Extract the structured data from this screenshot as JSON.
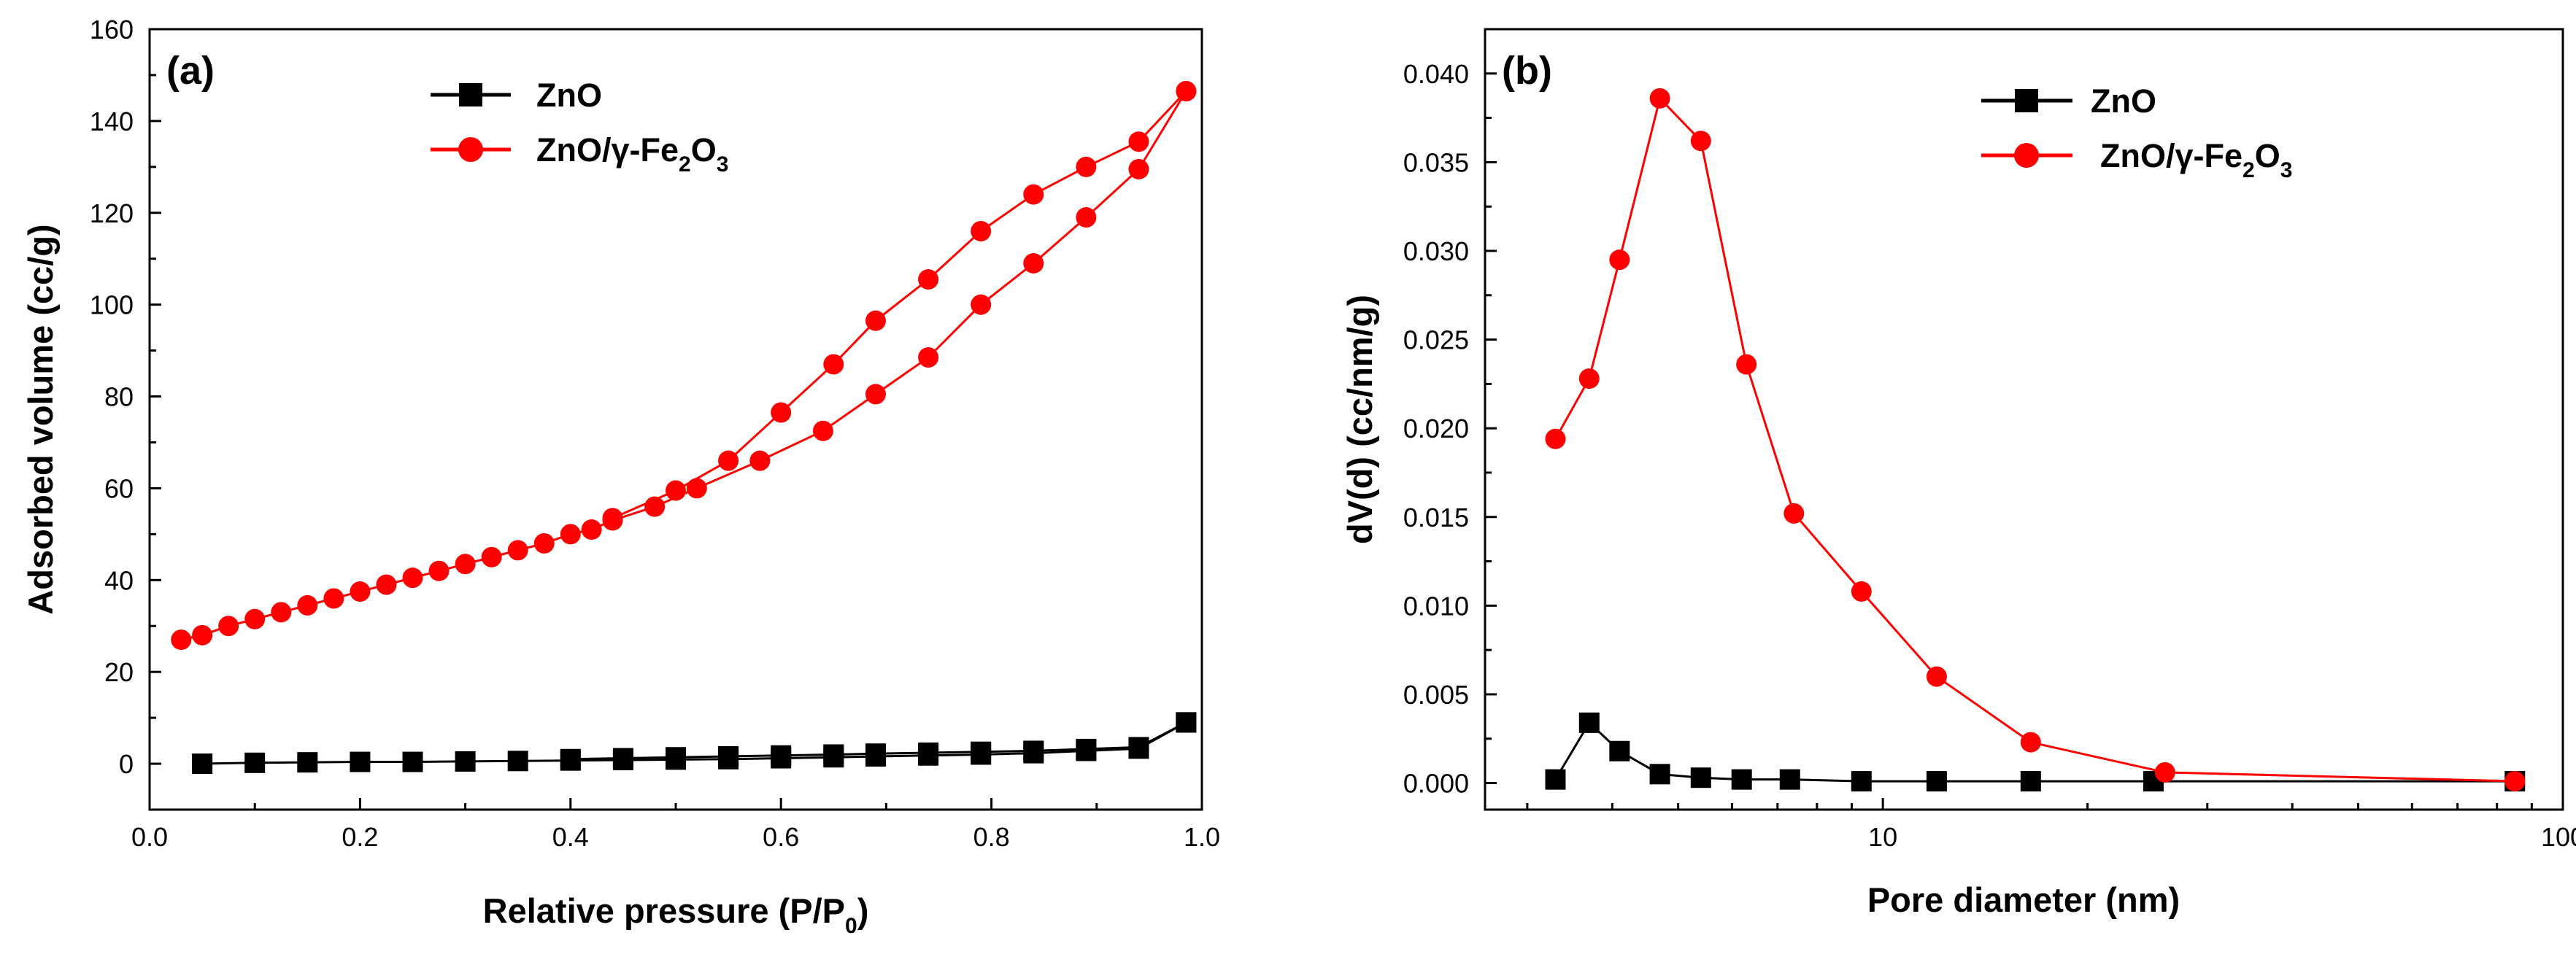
{
  "chart_data": [
    {
      "type": "line",
      "panel_label": "(a)",
      "xlabel_main": "Relative pressure (P/P",
      "xlabel_sub": "0",
      "xlabel_end": ")",
      "ylabel": "Adsorbed volume (cc/g)",
      "xlim": [
        0.0,
        1.0
      ],
      "ylim": [
        -10,
        160
      ],
      "x_ticks": [
        "0.0",
        "0.2",
        "0.4",
        "0.6",
        "0.8",
        "1.0"
      ],
      "y_ticks": [
        "0",
        "20",
        "40",
        "60",
        "80",
        "100",
        "120",
        "140",
        "160"
      ],
      "legend_position": "top-left",
      "series": [
        {
          "name": "ZnO",
          "legend_main": "ZnO",
          "color": "#000000",
          "marker": "square",
          "segments": [
            {
              "x": [
                0.05,
                0.1,
                0.15,
                0.2,
                0.25,
                0.3,
                0.35,
                0.4,
                0.45,
                0.5,
                0.55,
                0.6,
                0.65,
                0.69,
                0.74,
                0.79,
                0.84,
                0.89,
                0.94,
                0.985
              ],
              "y": [
                0.0,
                0.2,
                0.3,
                0.4,
                0.4,
                0.5,
                0.6,
                0.7,
                0.8,
                0.9,
                1.0,
                1.2,
                1.4,
                1.6,
                1.8,
                2.0,
                2.3,
                2.8,
                3.3,
                9.0
              ]
            },
            {
              "x": [
                0.985,
                0.94,
                0.89,
                0.84,
                0.79,
                0.74,
                0.69,
                0.65,
                0.6,
                0.55,
                0.5,
                0.45,
                0.4
              ],
              "y": [
                9.0,
                3.6,
                3.2,
                2.8,
                2.6,
                2.4,
                2.2,
                2.0,
                1.8,
                1.6,
                1.4,
                1.2,
                1.0
              ]
            }
          ]
        },
        {
          "name": "ZnO/γ-Fe2O3",
          "legend_main": "ZnO/γ-Fe",
          "legend_sub1": "2",
          "legend_mid": "O",
          "legend_sub2": "3",
          "color": "#ff0000",
          "marker": "circle",
          "segments": [
            {
              "x": [
                0.03,
                0.05,
                0.075,
                0.1,
                0.125,
                0.15,
                0.175,
                0.2,
                0.225,
                0.25,
                0.275,
                0.3,
                0.325,
                0.35,
                0.375,
                0.4,
                0.42,
                0.44,
                0.48,
                0.52,
                0.58,
                0.64,
                0.69,
                0.74,
                0.79,
                0.84,
                0.89,
                0.94,
                0.985
              ],
              "y": [
                27.0,
                28.0,
                30.0,
                31.5,
                33.0,
                34.5,
                36.0,
                37.5,
                39.0,
                40.5,
                42.0,
                43.5,
                45.0,
                46.5,
                48.0,
                50.0,
                51.0,
                53.0,
                56.0,
                60.0,
                66.0,
                72.5,
                80.5,
                88.5,
                100.0,
                109.0,
                119.0,
                129.5,
                146.5
              ]
            },
            {
              "x": [
                0.985,
                0.94,
                0.89,
                0.84,
                0.79,
                0.74,
                0.69,
                0.65,
                0.6,
                0.55,
                0.5,
                0.44
              ],
              "y": [
                146.5,
                135.5,
                130.0,
                124.0,
                116.0,
                105.5,
                96.5,
                87.0,
                76.5,
                66.0,
                59.5,
                53.5
              ]
            }
          ]
        }
      ]
    },
    {
      "type": "line",
      "xscale": "log",
      "panel_label": "(b)",
      "xlabel": "Pore diameter (nm)",
      "ylabel": "dV(d) (cc/nm/g)",
      "xlim": [
        2.6,
        100
      ],
      "ylim": [
        -0.0015,
        0.0425
      ],
      "x_ticks": [
        "10",
        "100"
      ],
      "y_ticks": [
        "0.000",
        "0.005",
        "0.010",
        "0.015",
        "0.020",
        "0.025",
        "0.030",
        "0.035",
        "0.040"
      ],
      "legend_position": "top-right",
      "series": [
        {
          "name": "ZnO",
          "legend_main": "ZnO",
          "color": "#000000",
          "marker": "square",
          "x": [
            3.3,
            3.7,
            4.1,
            4.7,
            5.4,
            6.2,
            7.3,
            9.3,
            12.0,
            16.5,
            25.0,
            85.0
          ],
          "y": [
            0.0002,
            0.0034,
            0.0018,
            0.0005,
            0.0003,
            0.0002,
            0.0002,
            0.0001,
            0.0001,
            0.0001,
            0.0001,
            0.0001
          ]
        },
        {
          "name": "ZnO/γ-Fe2O3",
          "legend_main": "ZnO/γ-Fe",
          "legend_sub1": "2",
          "legend_mid": "O",
          "legend_sub2": "3",
          "color": "#ff0000",
          "marker": "circle",
          "x": [
            3.3,
            3.7,
            4.1,
            4.7,
            5.4,
            6.3,
            7.4,
            9.3,
            12.0,
            16.5,
            26.0,
            85.0
          ],
          "y": [
            0.0194,
            0.0228,
            0.0295,
            0.0386,
            0.0362,
            0.0236,
            0.0152,
            0.0108,
            0.006,
            0.0023,
            0.0006,
            0.0001
          ]
        }
      ]
    }
  ]
}
